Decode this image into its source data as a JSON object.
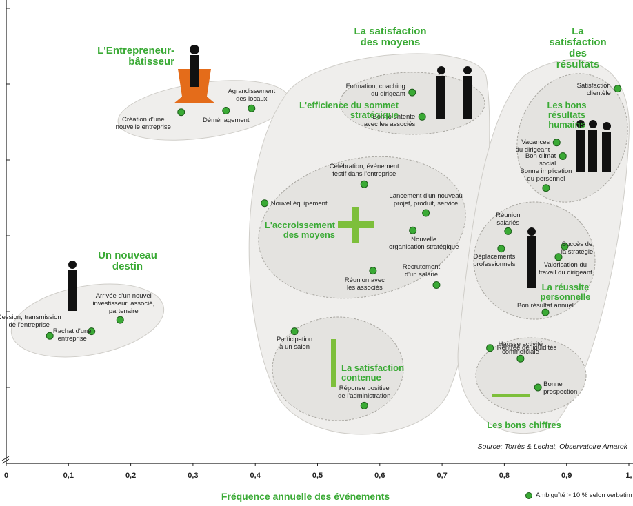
{
  "chart_data": {
    "type": "scatter",
    "xlabel": "Fréquence annuelle des événements",
    "source": "Source: Torrès & Lechat, Observatoire Amarok",
    "xlim": [
      0,
      1
    ],
    "ylim": [
      0,
      6
    ],
    "xticks": [
      0,
      {
        "value": 0.1,
        "label": "0,1"
      },
      {
        "value": 0.2,
        "label": "0,2"
      },
      {
        "value": 0.3,
        "label": "0,3"
      },
      {
        "value": 0.4,
        "label": "0,4"
      },
      {
        "value": 0.5,
        "label": "0,5"
      },
      {
        "value": 0.6,
        "label": "0,6"
      },
      {
        "value": 0.7,
        "label": "0,7"
      },
      {
        "value": 0.8,
        "label": "0,8"
      },
      {
        "value": 0.9,
        "label": "0,9"
      },
      {
        "value": 1,
        "label": "1,"
      }
    ],
    "yticks": [
      1,
      2,
      3,
      4,
      5,
      6
    ],
    "series": [
      {
        "name": "Ambiguïté > 10 % selon verbatim",
        "color": "#3aaa35",
        "x": [
          0.281,
          0.353,
          0.394,
          0.07,
          0.137,
          0.183,
          0.652,
          0.668,
          0.575,
          0.415,
          0.674,
          0.653,
          0.589,
          0.691,
          0.463,
          0.575,
          0.982,
          0.884,
          0.894,
          0.867,
          0.806,
          0.897,
          0.795,
          0.887,
          0.866,
          0.777,
          0.826,
          0.854
        ],
        "values": [
          4.63,
          4.65,
          4.68,
          1.68,
          1.74,
          1.89,
          4.89,
          4.57,
          3.68,
          3.43,
          3.3,
          3.07,
          2.54,
          2.35,
          1.74,
          0.76,
          4.94,
          4.23,
          4.05,
          3.63,
          3.06,
          2.86,
          2.83,
          2.72,
          1.99,
          1.52,
          1.38,
          1.0
        ],
        "point_labels": [
          "Création d'une\nnouvelle entreprise",
          "Déménagement",
          "Agrandissement\ndes locaux",
          "Cession, transmission\nde l'entreprise",
          "Rachat d'une\nentreprise",
          "Arrivée d'un nouvel\ninvestisseur, associé,\npartenaire",
          "Formation, coaching\ndu dirigeant",
          "Bonne entente\navec les associés",
          "Célébration, événement\nfestif dans l'entreprise",
          "Nouvel équipement",
          "Lancement d'un nouveau\nprojet, produit, service",
          "Nouvelle\norganisation stratégique",
          "Réunion avec\nles associés",
          "Recrutement\nd'un salarié",
          "Participation\nà un salon",
          "Réponse positive\nde l'administration",
          "Satisfaction\nclientèle",
          "Vacances\ndu dirigeant",
          "Bon climat\nsocial",
          "Bonne implication\ndu personnel",
          "Réunion\nsalariés",
          "Succès de\nla stratégie",
          "Déplacements\nprofessionnels",
          "Valorisation du\ntravail du dirigeant",
          "Bon résultat annuel",
          "Rentrée de liquidités",
          "Hausse activité\ncommerciale",
          "Bonne\nprospection"
        ]
      }
    ],
    "annotations": [
      "L'Entrepreneur-\nbâtisseur",
      "La satisfaction\ndes moyens",
      "La satisfaction\ndes résultats",
      "Un nouveau\ndestin",
      "L'efficience du sommet\nstratégique",
      "L'accroissement\ndes moyens",
      "La satisfaction\ncontenue",
      "Les bons résultats\nhumains",
      "La réussite\npersonnelle",
      "Les bons chiffres"
    ]
  }
}
